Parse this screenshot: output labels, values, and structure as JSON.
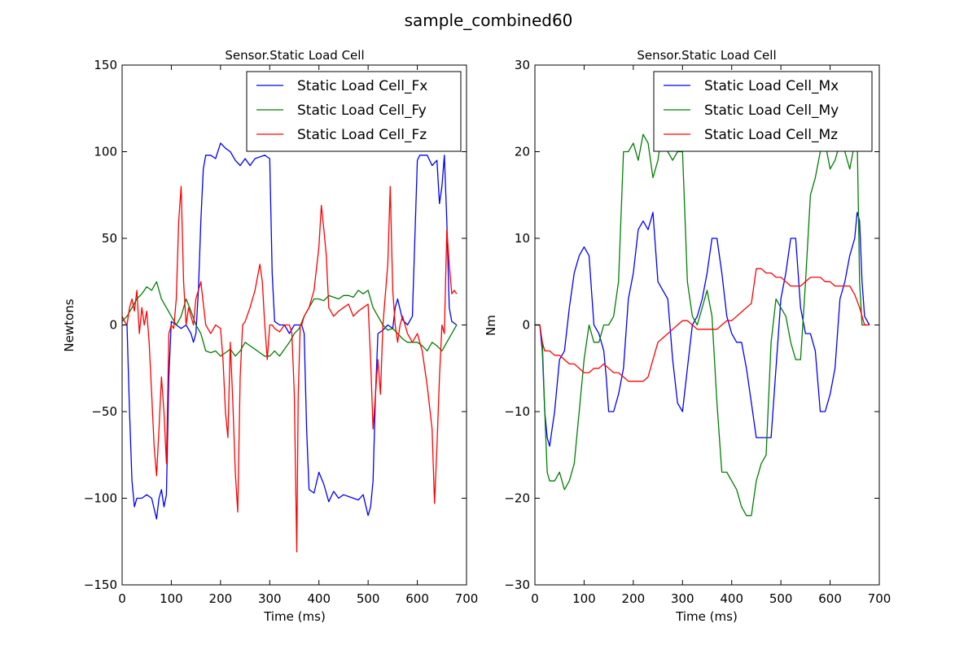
{
  "figure": {
    "title": "sample_combined60"
  },
  "chart_data": [
    {
      "type": "line",
      "title": "Sensor.Static Load Cell",
      "xlabel": "Time (ms)",
      "ylabel": "Newtons",
      "xlim": [
        0,
        700
      ],
      "ylim": [
        -150,
        150
      ],
      "xticks": [
        0,
        100,
        200,
        300,
        400,
        500,
        600,
        700
      ],
      "yticks": [
        -150,
        -100,
        -50,
        0,
        50,
        100,
        150
      ],
      "tick_labels_y": [
        "−150",
        "−100",
        "−50",
        "0",
        "50",
        "100",
        "150"
      ],
      "legend_position": "upper-right",
      "grid": false,
      "series": [
        {
          "name": "Static Load Cell_Fx",
          "color": "#0000ff",
          "x": [
            0,
            10,
            15,
            20,
            25,
            30,
            40,
            50,
            60,
            70,
            75,
            80,
            85,
            90,
            95,
            100,
            110,
            120,
            130,
            140,
            145,
            150,
            155,
            160,
            165,
            170,
            180,
            190,
            200,
            210,
            220,
            230,
            240,
            250,
            260,
            270,
            280,
            290,
            300,
            305,
            310,
            320,
            330,
            340,
            350,
            360,
            365,
            370,
            375,
            380,
            390,
            400,
            410,
            420,
            430,
            440,
            450,
            460,
            470,
            480,
            490,
            500,
            505,
            510,
            515,
            520,
            530,
            540,
            550,
            555,
            560,
            570,
            580,
            590,
            600,
            605,
            610,
            620,
            630,
            640,
            645,
            650,
            655,
            660,
            665,
            670,
            680
          ],
          "y": [
            0,
            0,
            -50,
            -90,
            -105,
            -100,
            -100,
            -98,
            -100,
            -112,
            -100,
            -95,
            -105,
            -98,
            -30,
            2,
            0,
            -2,
            0,
            -5,
            -10,
            -5,
            20,
            60,
            90,
            98,
            98,
            96,
            105,
            102,
            100,
            95,
            92,
            96,
            92,
            96,
            97,
            98,
            96,
            30,
            2,
            0,
            0,
            -5,
            0,
            0,
            0,
            -5,
            -60,
            -95,
            -97,
            -85,
            -92,
            -102,
            -96,
            -100,
            -98,
            -99,
            -100,
            -101,
            -98,
            -110,
            -105,
            -90,
            -40,
            -5,
            -3,
            0,
            -2,
            10,
            15,
            3,
            0,
            5,
            95,
            98,
            98,
            98,
            92,
            95,
            70,
            80,
            98,
            60,
            10,
            2,
            0
          ]
        },
        {
          "name": "Static Load Cell_Fy",
          "color": "#008000",
          "x": [
            0,
            10,
            20,
            30,
            40,
            50,
            60,
            70,
            80,
            90,
            100,
            110,
            120,
            130,
            140,
            150,
            160,
            170,
            180,
            190,
            200,
            210,
            220,
            230,
            240,
            250,
            260,
            270,
            280,
            290,
            300,
            310,
            320,
            330,
            340,
            350,
            360,
            370,
            380,
            390,
            400,
            410,
            420,
            430,
            440,
            450,
            460,
            470,
            480,
            490,
            500,
            510,
            520,
            530,
            540,
            550,
            560,
            570,
            580,
            590,
            600,
            610,
            620,
            630,
            640,
            650,
            660,
            670,
            680
          ],
          "y": [
            2,
            5,
            10,
            15,
            18,
            22,
            20,
            25,
            15,
            10,
            5,
            0,
            5,
            15,
            8,
            0,
            -5,
            -15,
            -16,
            -15,
            -18,
            -16,
            -14,
            -18,
            -15,
            -10,
            -12,
            -14,
            -16,
            -18,
            -18,
            -15,
            -18,
            -14,
            -10,
            -5,
            -2,
            5,
            10,
            15,
            15,
            14,
            17,
            16,
            15,
            17,
            17,
            16,
            20,
            18,
            20,
            10,
            5,
            0,
            -3,
            -2,
            -5,
            -8,
            -10,
            -10,
            -10,
            -12,
            -15,
            -10,
            -12,
            -15,
            -10,
            -5,
            0
          ]
        },
        {
          "name": "Static Load Cell_Fz",
          "color": "#ff0000",
          "x": [
            0,
            5,
            10,
            15,
            20,
            25,
            30,
            35,
            40,
            45,
            50,
            55,
            60,
            65,
            70,
            75,
            80,
            85,
            90,
            95,
            100,
            105,
            110,
            115,
            120,
            125,
            130,
            135,
            140,
            145,
            150,
            160,
            170,
            180,
            190,
            200,
            205,
            210,
            215,
            220,
            225,
            230,
            235,
            240,
            245,
            250,
            260,
            270,
            280,
            285,
            290,
            295,
            300,
            305,
            310,
            320,
            330,
            340,
            345,
            350,
            355,
            358,
            362,
            365,
            370,
            380,
            390,
            400,
            405,
            410,
            415,
            420,
            430,
            440,
            450,
            460,
            470,
            480,
            490,
            500,
            505,
            510,
            515,
            520,
            525,
            530,
            540,
            545,
            550,
            555,
            560,
            565,
            570,
            580,
            590,
            600,
            610,
            620,
            630,
            635,
            640,
            645,
            650,
            655,
            660,
            665,
            670,
            675,
            680
          ],
          "y": [
            5,
            2,
            0,
            10,
            15,
            8,
            20,
            -5,
            10,
            0,
            8,
            -10,
            -40,
            -70,
            -87,
            -60,
            -30,
            -50,
            -80,
            -5,
            0,
            -2,
            15,
            60,
            80,
            25,
            0,
            10,
            5,
            0,
            15,
            25,
            0,
            -5,
            0,
            -2,
            -20,
            -50,
            -65,
            -10,
            -45,
            -85,
            -108,
            -30,
            0,
            2,
            10,
            20,
            35,
            25,
            0,
            -20,
            0,
            0,
            -2,
            -4,
            0,
            0,
            -5,
            -40,
            -131,
            -40,
            0,
            0,
            5,
            10,
            20,
            45,
            69,
            55,
            40,
            10,
            5,
            8,
            10,
            12,
            5,
            8,
            10,
            12,
            -20,
            -60,
            -40,
            -20,
            -40,
            0,
            35,
            80,
            20,
            0,
            -10,
            0,
            5,
            -5,
            -10,
            -5,
            -15,
            -35,
            -60,
            -103,
            -70,
            -30,
            0,
            -5,
            55,
            35,
            18,
            20,
            18
          ]
        }
      ]
    },
    {
      "type": "line",
      "title": "Sensor.Static Load Cell",
      "xlabel": "Time (ms)",
      "ylabel": "Nm",
      "xlim": [
        0,
        700
      ],
      "ylim": [
        -30,
        30
      ],
      "xticks": [
        0,
        100,
        200,
        300,
        400,
        500,
        600,
        700
      ],
      "yticks": [
        -30,
        -20,
        -10,
        0,
        10,
        20,
        30
      ],
      "tick_labels_y": [
        "−30",
        "−20",
        "−10",
        "0",
        "10",
        "20",
        "30"
      ],
      "legend_position": "upper-right",
      "grid": false,
      "series": [
        {
          "name": "Static Load Cell_Mx",
          "color": "#0000ff",
          "x": [
            0,
            10,
            15,
            20,
            25,
            30,
            35,
            40,
            50,
            60,
            70,
            75,
            80,
            90,
            100,
            110,
            120,
            130,
            140,
            145,
            150,
            160,
            170,
            180,
            190,
            200,
            210,
            220,
            230,
            240,
            250,
            260,
            270,
            280,
            290,
            300,
            310,
            320,
            330,
            340,
            350,
            360,
            370,
            380,
            390,
            400,
            410,
            420,
            430,
            440,
            450,
            460,
            470,
            480,
            490,
            500,
            510,
            520,
            530,
            540,
            550,
            560,
            570,
            580,
            590,
            600,
            610,
            620,
            630,
            640,
            650,
            655,
            660,
            665,
            670,
            680
          ],
          "y": [
            0,
            0,
            -3,
            -10,
            -13,
            -14,
            -12,
            -10,
            -4,
            -3,
            2,
            4,
            6,
            8,
            9,
            8,
            0,
            -1,
            -3,
            -6,
            -10,
            -10,
            -8,
            -5,
            3,
            6,
            11,
            12,
            11,
            13,
            5,
            4,
            3,
            -4,
            -9,
            -10,
            -5,
            0,
            1,
            3,
            6,
            10,
            10,
            6,
            1,
            -1,
            -2,
            -2,
            -5,
            -9,
            -13,
            -13,
            -13,
            -13,
            -5,
            3,
            6,
            10,
            10,
            2,
            -1,
            -1,
            -3,
            -10,
            -10,
            -8,
            -5,
            3,
            5,
            8,
            10,
            13,
            12,
            5,
            1,
            0
          ]
        },
        {
          "name": "Static Load Cell_My",
          "color": "#008000",
          "x": [
            0,
            5,
            10,
            15,
            20,
            25,
            30,
            40,
            50,
            60,
            70,
            80,
            90,
            100,
            110,
            120,
            130,
            140,
            150,
            160,
            170,
            180,
            190,
            200,
            210,
            220,
            230,
            240,
            250,
            260,
            270,
            280,
            290,
            300,
            310,
            320,
            330,
            340,
            350,
            360,
            370,
            380,
            390,
            400,
            410,
            420,
            430,
            440,
            450,
            460,
            470,
            480,
            490,
            500,
            510,
            520,
            530,
            540,
            550,
            560,
            570,
            580,
            590,
            600,
            610,
            620,
            630,
            640,
            650,
            655,
            660,
            665,
            670,
            680
          ],
          "y": [
            0,
            0,
            0,
            -2,
            -10,
            -17,
            -18,
            -18,
            -17,
            -19,
            -18,
            -16,
            -10,
            -4,
            0,
            -2,
            -2,
            0,
            0,
            1,
            5,
            20,
            20,
            21,
            19,
            22,
            21,
            17,
            19,
            23,
            20,
            19,
            20,
            20,
            5,
            1,
            0,
            2,
            4,
            1,
            -9,
            -17,
            -17,
            -18,
            -19,
            -21,
            -22,
            -22,
            -18,
            -16,
            -15,
            -2,
            3,
            2,
            1,
            -2,
            -4,
            -4,
            5,
            15,
            17,
            20,
            21,
            18,
            19,
            21,
            20,
            18,
            21,
            22,
            5,
            0,
            0,
            0
          ]
        },
        {
          "name": "Static Load Cell_Mz",
          "color": "#ff0000",
          "x": [
            0,
            10,
            15,
            20,
            30,
            40,
            50,
            60,
            70,
            80,
            90,
            100,
            110,
            120,
            130,
            140,
            150,
            160,
            170,
            180,
            190,
            200,
            210,
            220,
            230,
            240,
            250,
            260,
            270,
            280,
            290,
            300,
            310,
            320,
            330,
            340,
            350,
            360,
            370,
            380,
            390,
            400,
            410,
            420,
            430,
            440,
            450,
            460,
            470,
            480,
            490,
            500,
            510,
            520,
            530,
            540,
            550,
            560,
            570,
            580,
            590,
            600,
            610,
            620,
            630,
            640,
            650,
            660,
            670,
            680
          ],
          "y": [
            0,
            0,
            -2,
            -3,
            -3,
            -3.5,
            -3.5,
            -4,
            -4.5,
            -4.5,
            -5,
            -5.5,
            -5.5,
            -5,
            -5,
            -4.5,
            -5,
            -5.5,
            -5.5,
            -6,
            -6.5,
            -6.5,
            -6.5,
            -6.5,
            -6,
            -4,
            -2,
            -1.5,
            -1,
            -0.5,
            0,
            0.5,
            0.5,
            0,
            -0.5,
            -0.5,
            -0.5,
            -0.5,
            -0.5,
            0,
            0.5,
            0.5,
            1,
            1.5,
            2,
            2.5,
            6.5,
            6.5,
            6,
            6,
            5.5,
            5.5,
            5,
            4.5,
            4.5,
            4.5,
            5,
            5.5,
            5.5,
            5.5,
            5,
            5,
            4.5,
            4.5,
            4.5,
            4.5,
            3.5,
            2,
            0,
            0
          ]
        }
      ]
    }
  ]
}
